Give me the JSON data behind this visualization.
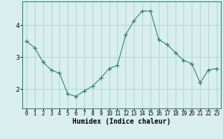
{
  "xlabel": "Humidex (Indice chaleur)",
  "ylabel": "",
  "x_values": [
    0,
    1,
    2,
    3,
    4,
    5,
    6,
    7,
    8,
    9,
    10,
    11,
    12,
    13,
    14,
    15,
    16,
    17,
    18,
    19,
    20,
    21,
    22,
    23
  ],
  "y_values": [
    3.5,
    3.3,
    2.85,
    2.6,
    2.5,
    1.85,
    1.78,
    1.95,
    2.1,
    2.35,
    2.65,
    2.75,
    3.7,
    4.15,
    4.45,
    4.45,
    3.55,
    3.4,
    3.15,
    2.9,
    2.8,
    2.2,
    2.6,
    2.65
  ],
  "line_color": "#2e7f6e",
  "marker": "+",
  "marker_size": 4,
  "bg_color": "#d9efef",
  "grid_color": "#b0d8d8",
  "ylim": [
    1.4,
    4.75
  ],
  "yticks": [
    2,
    3,
    4
  ],
  "xlim": [
    -0.5,
    23.5
  ],
  "figsize": [
    3.2,
    2.0
  ],
  "dpi": 100
}
